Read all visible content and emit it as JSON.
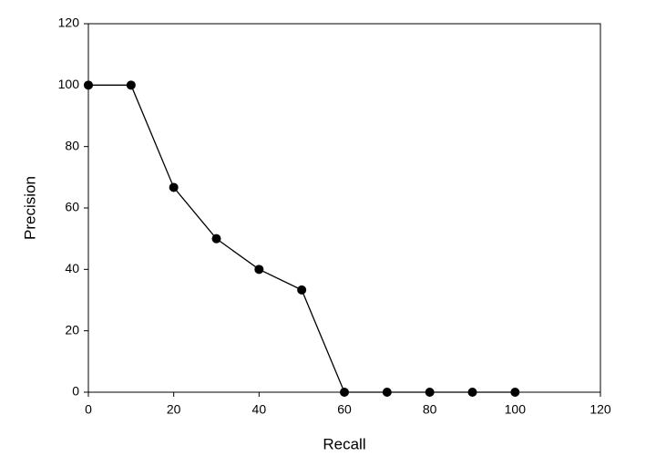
{
  "chart_data": {
    "type": "line",
    "x_label": "Recall",
    "y_label": "Precision",
    "x": [
      0,
      10,
      20,
      30,
      40,
      50,
      60,
      70,
      80,
      90,
      100
    ],
    "series": [
      {
        "color": "#000000",
        "values": [
          100,
          100,
          66.7,
          50,
          40,
          33.3,
          0,
          0,
          0,
          0,
          0
        ]
      }
    ],
    "xlim": [
      0,
      120
    ],
    "xticks": [
      0,
      20,
      40,
      60,
      80,
      100,
      120
    ],
    "ylim": [
      0,
      120
    ],
    "yticks": [
      0,
      20,
      40,
      60,
      80,
      100,
      120
    ],
    "grid": false
  }
}
